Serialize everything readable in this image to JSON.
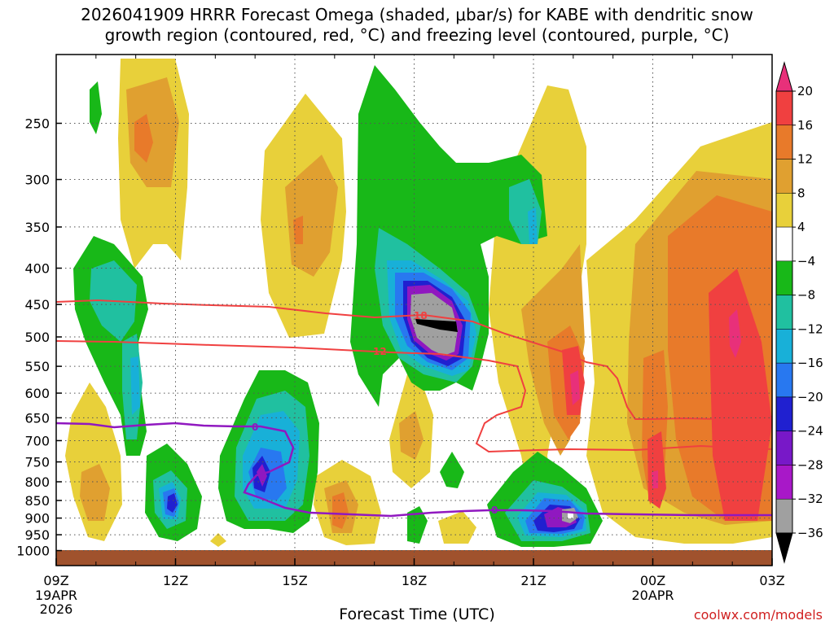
{
  "title_line1": "2026041909 HRRR Forecast Omega (shaded, μbar/s) for KABE with dendritic snow",
  "title_line2": "growth region (contoured, red, °C) and freezing level (contoured, purple, °C)",
  "credit": "coolwx.com/models",
  "chart_data": {
    "type": "contour",
    "xlabel": "Forecast Time (UTC)",
    "ylabel": "",
    "x_ticks": [
      "09Z",
      "12Z",
      "15Z",
      "18Z",
      "21Z",
      "00Z",
      "03Z"
    ],
    "x_subticks": [
      {
        "at": "09Z",
        "lines": [
          "19APR",
          "2026"
        ]
      },
      {
        "at": "00Z",
        "lines": [
          "20APR"
        ]
      }
    ],
    "y_ticks": [
      250,
      300,
      350,
      400,
      450,
      500,
      550,
      600,
      650,
      700,
      750,
      800,
      850,
      900,
      950,
      1000
    ],
    "y_scale": "pressure (inverted)",
    "grid": true,
    "colorbar": {
      "labels": [
        "20",
        "16",
        "12",
        "8",
        "4",
        "−4",
        "−8",
        "−12",
        "−16",
        "−20",
        "−24",
        "−28",
        "−32",
        "−36"
      ],
      "colors": [
        "#e8307a",
        "#f04040",
        "#e87a2a",
        "#e0a030",
        "#e8d03a",
        "#ffffff",
        "#18b818",
        "#20c0a0",
        "#18b0d8",
        "#2878f0",
        "#2020d0",
        "#7818c8",
        "#a818c8",
        "#a0a0a0",
        "#000000"
      ]
    },
    "contour_labels": [
      {
        "text": "18",
        "color": "#f04040"
      },
      {
        "text": "12",
        "color": "#f04040"
      },
      {
        "text": "0",
        "color": "#9018c0"
      }
    ],
    "ground_color": "#a0522d"
  }
}
